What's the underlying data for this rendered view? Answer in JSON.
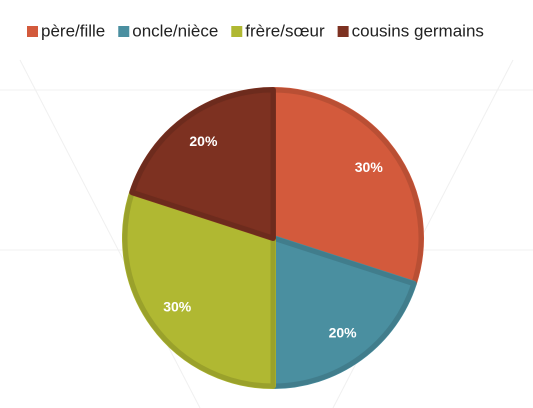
{
  "chart_data": {
    "type": "pie",
    "categories": [
      "père/fille",
      "oncle/nièce",
      "frère/sœur",
      "cousins germains"
    ],
    "values": [
      30,
      20,
      30,
      20
    ],
    "value_labels": [
      "30%",
      "20%",
      "30%",
      "20%"
    ],
    "colors": [
      "#d35a3c",
      "#4a8fa0",
      "#b0b832",
      "#7d3121"
    ],
    "legend": "top"
  }
}
